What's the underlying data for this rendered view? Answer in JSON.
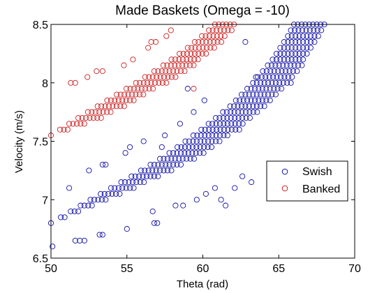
{
  "chart_data": {
    "type": "scatter",
    "title": "Made Baskets (Omega = -10)",
    "xlabel": "Theta (rad)",
    "ylabel": "Velocity (m/s)",
    "xlim": [
      50,
      70
    ],
    "ylim": [
      6.5,
      8.5
    ],
    "xticks": [
      "50",
      "55",
      "60",
      "65",
      "70"
    ],
    "yticks": [
      "6.5",
      "7",
      "7.5",
      "8",
      "8.5"
    ],
    "grid": false,
    "legend_position": "right",
    "series": [
      {
        "name": "Swish",
        "color": "#1010a8",
        "marker": "open-circle",
        "band": {
          "v": [
            6.8,
            7.0,
            7.2,
            7.4,
            7.6,
            7.8,
            8.0,
            8.2,
            8.4,
            8.5
          ],
          "lower": [
            50.0,
            52.6,
            55.3,
            57.8,
            59.9,
            61.8,
            63.3,
            64.6,
            65.6,
            66.0
          ],
          "upper": [
            50.0,
            53.8,
            57.2,
            60.2,
            62.4,
            64.2,
            65.8,
            66.8,
            67.6,
            68.0
          ],
          "step": 0.05
        },
        "scatter_points": [
          {
            "x": 50.1,
            "y": 6.6
          },
          {
            "x": 51.6,
            "y": 6.65
          },
          {
            "x": 51.9,
            "y": 6.65
          },
          {
            "x": 52.2,
            "y": 6.65
          },
          {
            "x": 53.2,
            "y": 6.7
          },
          {
            "x": 53.4,
            "y": 6.7
          },
          {
            "x": 55.0,
            "y": 6.75
          },
          {
            "x": 56.8,
            "y": 6.8
          },
          {
            "x": 57.0,
            "y": 6.8
          },
          {
            "x": 56.7,
            "y": 6.9
          },
          {
            "x": 58.2,
            "y": 6.95
          },
          {
            "x": 58.7,
            "y": 6.95
          },
          {
            "x": 59.6,
            "y": 7.0
          },
          {
            "x": 60.2,
            "y": 7.05
          },
          {
            "x": 60.8,
            "y": 7.1
          },
          {
            "x": 51.2,
            "y": 7.1
          },
          {
            "x": 52.5,
            "y": 7.25
          },
          {
            "x": 53.4,
            "y": 7.3
          },
          {
            "x": 53.6,
            "y": 7.3
          },
          {
            "x": 54.9,
            "y": 7.4
          },
          {
            "x": 55.2,
            "y": 7.45
          },
          {
            "x": 56.1,
            "y": 7.5
          },
          {
            "x": 57.3,
            "y": 7.45
          },
          {
            "x": 57.5,
            "y": 7.55
          },
          {
            "x": 58.5,
            "y": 7.65
          },
          {
            "x": 59.4,
            "y": 7.75
          },
          {
            "x": 60.1,
            "y": 7.85
          },
          {
            "x": 59.0,
            "y": 7.95
          },
          {
            "x": 62.8,
            "y": 8.35
          },
          {
            "x": 63.5,
            "y": 8.05
          },
          {
            "x": 62.6,
            "y": 7.2
          },
          {
            "x": 62.1,
            "y": 7.1
          },
          {
            "x": 63.2,
            "y": 7.15
          },
          {
            "x": 61.2,
            "y": 7.0
          },
          {
            "x": 61.5,
            "y": 6.95
          }
        ]
      },
      {
        "name": "Banked",
        "color": "#cc2020",
        "marker": "open-circle",
        "band": {
          "v": [
            7.55,
            7.7,
            7.85,
            8.0,
            8.15,
            8.3,
            8.45,
            8.5
          ],
          "lower": [
            50.0,
            51.8,
            53.7,
            55.6,
            57.4,
            59.0,
            60.4,
            60.8
          ],
          "upper": [
            50.0,
            53.4,
            55.6,
            57.6,
            59.4,
            60.8,
            62.1,
            62.2
          ],
          "step": 0.05
        },
        "scatter_points": [
          {
            "x": 51.3,
            "y": 8.0
          },
          {
            "x": 51.6,
            "y": 8.0
          },
          {
            "x": 52.4,
            "y": 8.05
          },
          {
            "x": 53.0,
            "y": 8.1
          },
          {
            "x": 53.4,
            "y": 8.1
          },
          {
            "x": 54.8,
            "y": 8.15
          },
          {
            "x": 55.4,
            "y": 8.2
          },
          {
            "x": 56.4,
            "y": 8.3
          },
          {
            "x": 56.6,
            "y": 8.35
          },
          {
            "x": 56.9,
            "y": 8.35
          },
          {
            "x": 57.6,
            "y": 8.4
          },
          {
            "x": 57.9,
            "y": 8.45
          },
          {
            "x": 59.4,
            "y": 7.95
          }
        ]
      }
    ]
  }
}
